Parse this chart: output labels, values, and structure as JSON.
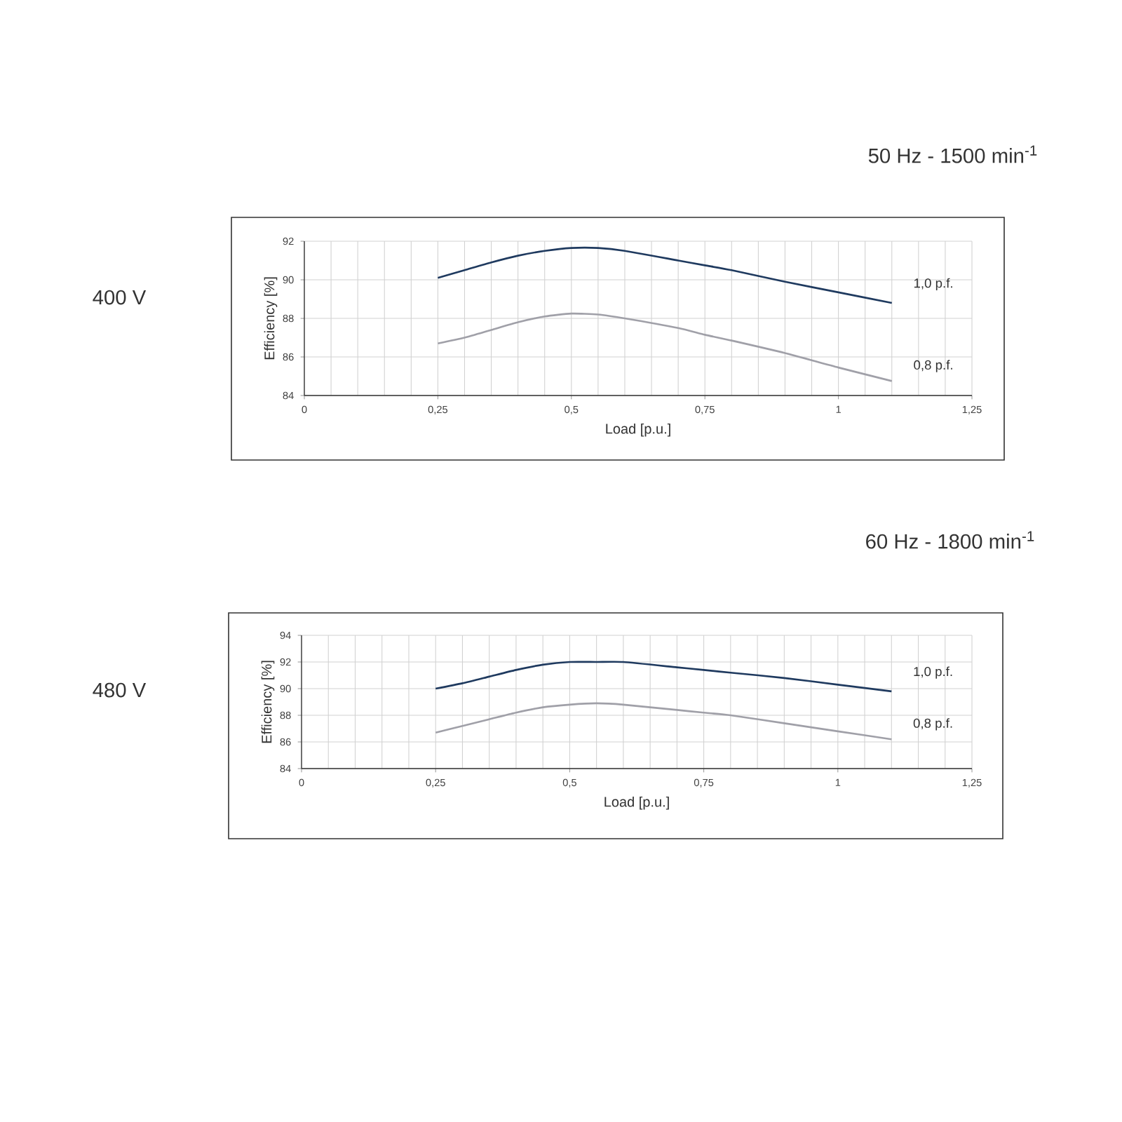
{
  "chart_data": [
    {
      "type": "line",
      "title": "50 Hz - 1500 min$^{-1}$",
      "annotations": [
        "400 V"
      ],
      "xlabel": "Load [p.u.]",
      "ylabel": "Efficiency [%]",
      "xlim": [
        0,
        1.25
      ],
      "ylim": [
        84,
        92
      ],
      "xticks": [
        0,
        {
          "value": 0.25,
          "label": "0,25"
        },
        {
          "value": 0.5,
          "label": "0,5"
        },
        {
          "value": 0.75,
          "label": "0,75"
        },
        1,
        {
          "value": 1.25,
          "label": "1,25"
        }
      ],
      "yticks": [
        84,
        86,
        88,
        90,
        92
      ],
      "grid": true,
      "x": [
        0.25,
        0.3,
        0.35,
        0.4,
        0.45,
        0.5,
        0.55,
        0.6,
        0.7,
        0.75,
        0.8,
        0.9,
        1.0,
        1.1
      ],
      "series": [
        {
          "name": "1,0 p.f.",
          "color": "#1f3a5f",
          "values": [
            90.1,
            90.5,
            90.9,
            91.25,
            91.5,
            91.65,
            91.65,
            91.5,
            91.0,
            90.75,
            90.5,
            89.9,
            89.35,
            88.8
          ]
        },
        {
          "name": "0,8 p.f.",
          "color": "#a0a0a8",
          "values": [
            86.7,
            87.0,
            87.4,
            87.8,
            88.1,
            88.25,
            88.2,
            88.0,
            87.5,
            87.15,
            86.85,
            86.2,
            85.45,
            84.75
          ]
        }
      ]
    },
    {
      "type": "line",
      "title": "60 Hz - 1800 min$^{-1}$",
      "annotations": [
        "480 V"
      ],
      "xlabel": "Load [p.u.]",
      "ylabel": "Efficiency [%]",
      "xlim": [
        0,
        1.25
      ],
      "ylim": [
        84,
        94
      ],
      "xticks": [
        0,
        {
          "value": 0.25,
          "label": "0,25"
        },
        {
          "value": 0.5,
          "label": "0,5"
        },
        {
          "value": 0.75,
          "label": "0,75"
        },
        1,
        {
          "value": 1.25,
          "label": "1,25"
        }
      ],
      "yticks": [
        84,
        86,
        88,
        90,
        92,
        94
      ],
      "grid": true,
      "x": [
        0.25,
        0.3,
        0.35,
        0.4,
        0.45,
        0.5,
        0.55,
        0.6,
        0.7,
        0.75,
        0.8,
        0.9,
        1.0,
        1.1
      ],
      "series": [
        {
          "name": "1,0 p.f.",
          "color": "#1f3a5f",
          "values": [
            90.0,
            90.4,
            90.9,
            91.4,
            91.8,
            92.0,
            92.0,
            92.0,
            91.6,
            91.4,
            91.2,
            90.8,
            90.3,
            89.8
          ]
        },
        {
          "name": "0,8 p.f.",
          "color": "#a0a0a8",
          "values": [
            86.7,
            87.2,
            87.7,
            88.2,
            88.6,
            88.8,
            88.9,
            88.8,
            88.4,
            88.2,
            88.0,
            87.4,
            86.8,
            86.2
          ]
        }
      ]
    }
  ]
}
